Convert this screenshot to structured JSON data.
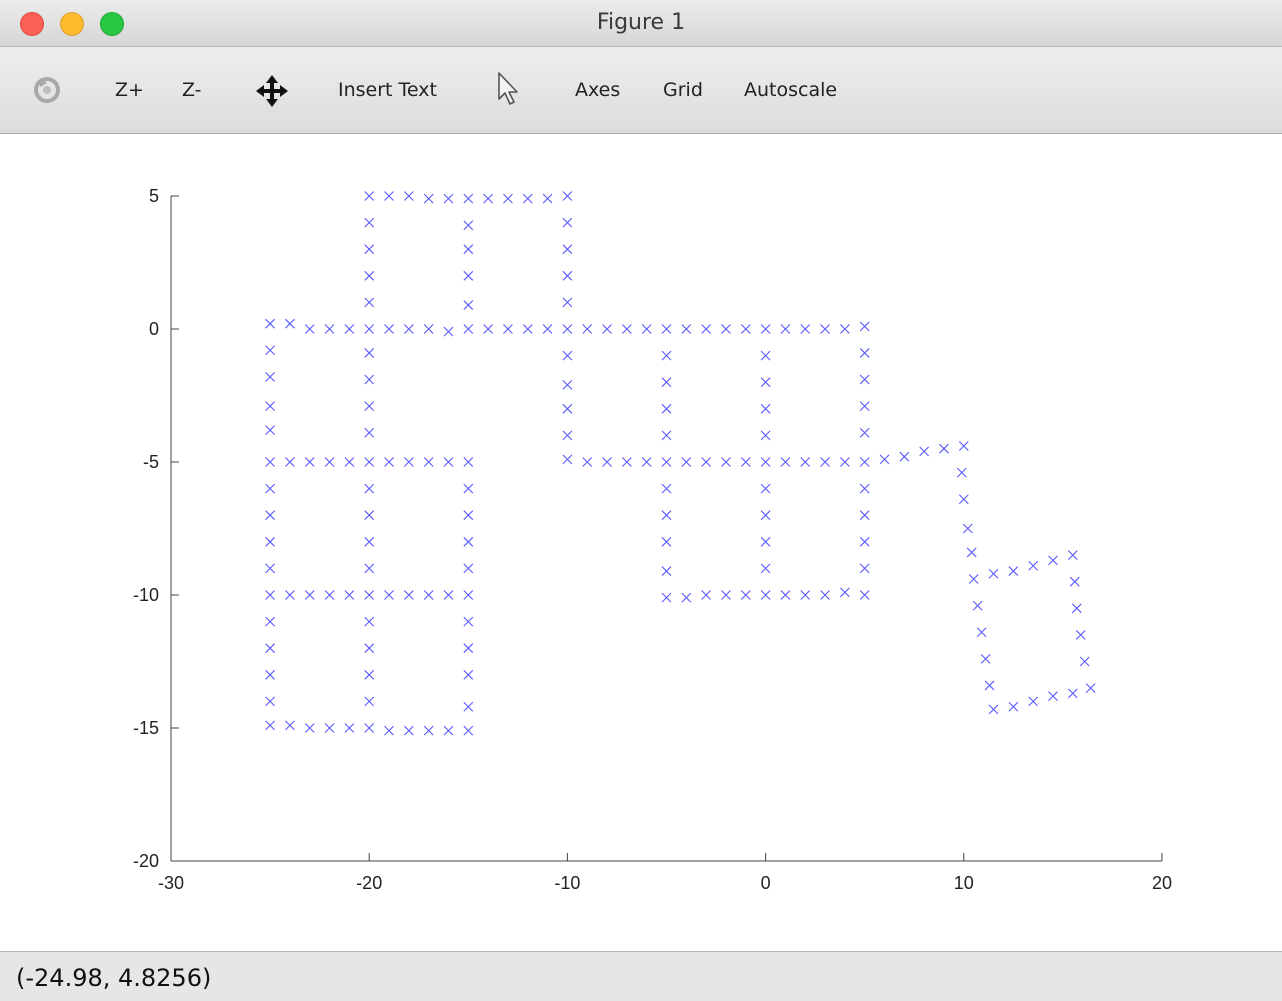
{
  "window": {
    "title": "Figure 1"
  },
  "toolbar": {
    "items": [
      {
        "id": "rotate",
        "icon": "rotate-icon",
        "label": ""
      },
      {
        "id": "zoom-in",
        "label": "Z+"
      },
      {
        "id": "zoom-out",
        "label": "Z-"
      },
      {
        "id": "pan",
        "icon": "pan-icon",
        "label": ""
      },
      {
        "id": "insert-text",
        "label": "Insert Text"
      },
      {
        "id": "select",
        "icon": "pointer-icon",
        "label": ""
      },
      {
        "id": "axes",
        "label": "Axes"
      },
      {
        "id": "grid",
        "label": "Grid"
      },
      {
        "id": "autoscale",
        "label": "Autoscale"
      }
    ]
  },
  "status": {
    "coords": "(-24.98, 4.8256)"
  },
  "chart_data": {
    "type": "scatter",
    "marker": "x",
    "color": "#0000ff",
    "xlim": [
      -30,
      20
    ],
    "ylim": [
      -20,
      5
    ],
    "xticks": [
      "-30",
      "-20",
      "-10",
      "0",
      "10",
      "20"
    ],
    "yticks": [
      "5",
      "0",
      "-5",
      "-10",
      "-15",
      "-20"
    ],
    "grid": false,
    "series": [
      {
        "points": [
          [
            -25,
            0.2
          ],
          [
            -24,
            0.2
          ],
          [
            -23,
            0
          ],
          [
            -22,
            0
          ],
          [
            -21,
            0
          ],
          [
            -20,
            0
          ],
          [
            -19,
            0
          ],
          [
            -18,
            0
          ],
          [
            -17,
            0
          ],
          [
            -16,
            -0.1
          ],
          [
            -15,
            0
          ],
          [
            -14,
            0
          ],
          [
            -13,
            0
          ],
          [
            -12,
            0
          ],
          [
            -11,
            0
          ],
          [
            -10,
            0
          ],
          [
            -9,
            0
          ],
          [
            -8,
            0
          ],
          [
            -7,
            0
          ],
          [
            -6,
            0
          ],
          [
            -5,
            0
          ],
          [
            -4,
            0
          ],
          [
            -3,
            0
          ],
          [
            -2,
            0
          ],
          [
            -1,
            0
          ],
          [
            0,
            0
          ],
          [
            1,
            0
          ],
          [
            2,
            0
          ],
          [
            3,
            0
          ],
          [
            4,
            0
          ],
          [
            5,
            0.1
          ],
          [
            -20,
            5
          ],
          [
            -19,
            5
          ],
          [
            -18,
            5
          ],
          [
            -17,
            4.9
          ],
          [
            -16,
            4.9
          ],
          [
            -15,
            4.9
          ],
          [
            -14,
            4.9
          ],
          [
            -13,
            4.9
          ],
          [
            -12,
            4.9
          ],
          [
            -11,
            4.9
          ],
          [
            -10,
            5
          ],
          [
            -20,
            4
          ],
          [
            -20,
            3
          ],
          [
            -20,
            2
          ],
          [
            -20,
            1
          ],
          [
            -15,
            3.9
          ],
          [
            -15,
            3
          ],
          [
            -15,
            2
          ],
          [
            -15,
            0.9
          ],
          [
            -10,
            4
          ],
          [
            -10,
            3
          ],
          [
            -10,
            2
          ],
          [
            -10,
            1
          ],
          [
            -25,
            -0.8
          ],
          [
            -25,
            -1.8
          ],
          [
            -25,
            -2.9
          ],
          [
            -25,
            -3.8
          ],
          [
            -20,
            -0.9
          ],
          [
            -20,
            -1.9
          ],
          [
            -20,
            -2.9
          ],
          [
            -20,
            -3.9
          ],
          [
            -25,
            -5
          ],
          [
            -24,
            -5
          ],
          [
            -23,
            -5
          ],
          [
            -22,
            -5
          ],
          [
            -21,
            -5
          ],
          [
            -20,
            -5
          ],
          [
            -19,
            -5
          ],
          [
            -18,
            -5
          ],
          [
            -17,
            -5
          ],
          [
            -16,
            -5
          ],
          [
            -15,
            -5
          ],
          [
            -25,
            -6
          ],
          [
            -25,
            -7
          ],
          [
            -25,
            -8
          ],
          [
            -25,
            -9
          ],
          [
            -20,
            -6
          ],
          [
            -20,
            -7
          ],
          [
            -20,
            -8
          ],
          [
            -20,
            -9
          ],
          [
            -15,
            -6
          ],
          [
            -15,
            -7
          ],
          [
            -15,
            -8
          ],
          [
            -15,
            -9
          ],
          [
            -25,
            -10
          ],
          [
            -24,
            -10
          ],
          [
            -23,
            -10
          ],
          [
            -22,
            -10
          ],
          [
            -21,
            -10
          ],
          [
            -20,
            -10
          ],
          [
            -19,
            -10
          ],
          [
            -18,
            -10
          ],
          [
            -17,
            -10
          ],
          [
            -16,
            -10
          ],
          [
            -15,
            -10
          ],
          [
            -25,
            -11
          ],
          [
            -25,
            -12
          ],
          [
            -25,
            -13
          ],
          [
            -25,
            -14
          ],
          [
            -20,
            -11
          ],
          [
            -20,
            -12
          ],
          [
            -20,
            -13
          ],
          [
            -20,
            -14
          ],
          [
            -15,
            -11
          ],
          [
            -15,
            -12
          ],
          [
            -15,
            -13
          ],
          [
            -15,
            -14.2
          ],
          [
            -25,
            -14.9
          ],
          [
            -24,
            -14.9
          ],
          [
            -23,
            -15
          ],
          [
            -22,
            -15
          ],
          [
            -21,
            -15
          ],
          [
            -20,
            -15
          ],
          [
            -19,
            -15.1
          ],
          [
            -18,
            -15.1
          ],
          [
            -17,
            -15.1
          ],
          [
            -16,
            -15.1
          ],
          [
            -15,
            -15.1
          ],
          [
            -10,
            -1
          ],
          [
            -10,
            -2.1
          ],
          [
            -10,
            -3
          ],
          [
            -10,
            -4
          ],
          [
            -5,
            -1
          ],
          [
            -5,
            -2
          ],
          [
            -5,
            -3
          ],
          [
            -5,
            -4
          ],
          [
            0,
            -1
          ],
          [
            0,
            -2
          ],
          [
            0,
            -3
          ],
          [
            0,
            -4
          ],
          [
            5,
            -0.9
          ],
          [
            5,
            -1.9
          ],
          [
            5,
            -2.9
          ],
          [
            5,
            -3.9
          ],
          [
            -10,
            -4.9
          ],
          [
            -9,
            -5
          ],
          [
            -8,
            -5
          ],
          [
            -7,
            -5
          ],
          [
            -6,
            -5
          ],
          [
            -5,
            -5
          ],
          [
            -4,
            -5
          ],
          [
            -3,
            -5
          ],
          [
            -2,
            -5
          ],
          [
            -1,
            -5
          ],
          [
            0,
            -5
          ],
          [
            1,
            -5
          ],
          [
            2,
            -5
          ],
          [
            3,
            -5
          ],
          [
            4,
            -5
          ],
          [
            5,
            -5
          ],
          [
            6,
            -4.9
          ],
          [
            7,
            -4.8
          ],
          [
            8,
            -4.6
          ],
          [
            9,
            -4.5
          ],
          [
            10,
            -4.4
          ],
          [
            -5,
            -6
          ],
          [
            -5,
            -7
          ],
          [
            -5,
            -8
          ],
          [
            -5,
            -9.1
          ],
          [
            0,
            -6
          ],
          [
            0,
            -7
          ],
          [
            0,
            -8
          ],
          [
            0,
            -9
          ],
          [
            5,
            -6
          ],
          [
            5,
            -7
          ],
          [
            5,
            -8
          ],
          [
            5,
            -9
          ],
          [
            -5,
            -10.1
          ],
          [
            -4,
            -10.1
          ],
          [
            -3,
            -10
          ],
          [
            -2,
            -10
          ],
          [
            -1,
            -10
          ],
          [
            0,
            -10
          ],
          [
            1,
            -10
          ],
          [
            2,
            -10
          ],
          [
            3,
            -10
          ],
          [
            4,
            -9.9
          ],
          [
            5,
            -10
          ],
          [
            9.9,
            -5.4
          ],
          [
            10,
            -6.4
          ],
          [
            10.2,
            -7.5
          ],
          [
            10.4,
            -8.4
          ],
          [
            10.5,
            -9.4
          ],
          [
            10.7,
            -10.4
          ],
          [
            10.9,
            -11.4
          ],
          [
            11.1,
            -12.4
          ],
          [
            11.3,
            -13.4
          ],
          [
            11.5,
            -14.3
          ],
          [
            11.5,
            -9.2
          ],
          [
            12.5,
            -9.1
          ],
          [
            13.5,
            -8.9
          ],
          [
            14.5,
            -8.7
          ],
          [
            15.5,
            -8.5
          ],
          [
            15.6,
            -9.5
          ],
          [
            15.7,
            -10.5
          ],
          [
            15.9,
            -11.5
          ],
          [
            16.1,
            -12.5
          ],
          [
            16.4,
            -13.5
          ],
          [
            12.5,
            -14.2
          ],
          [
            13.5,
            -14
          ],
          [
            14.5,
            -13.8
          ],
          [
            15.5,
            -13.7
          ]
        ]
      }
    ]
  }
}
